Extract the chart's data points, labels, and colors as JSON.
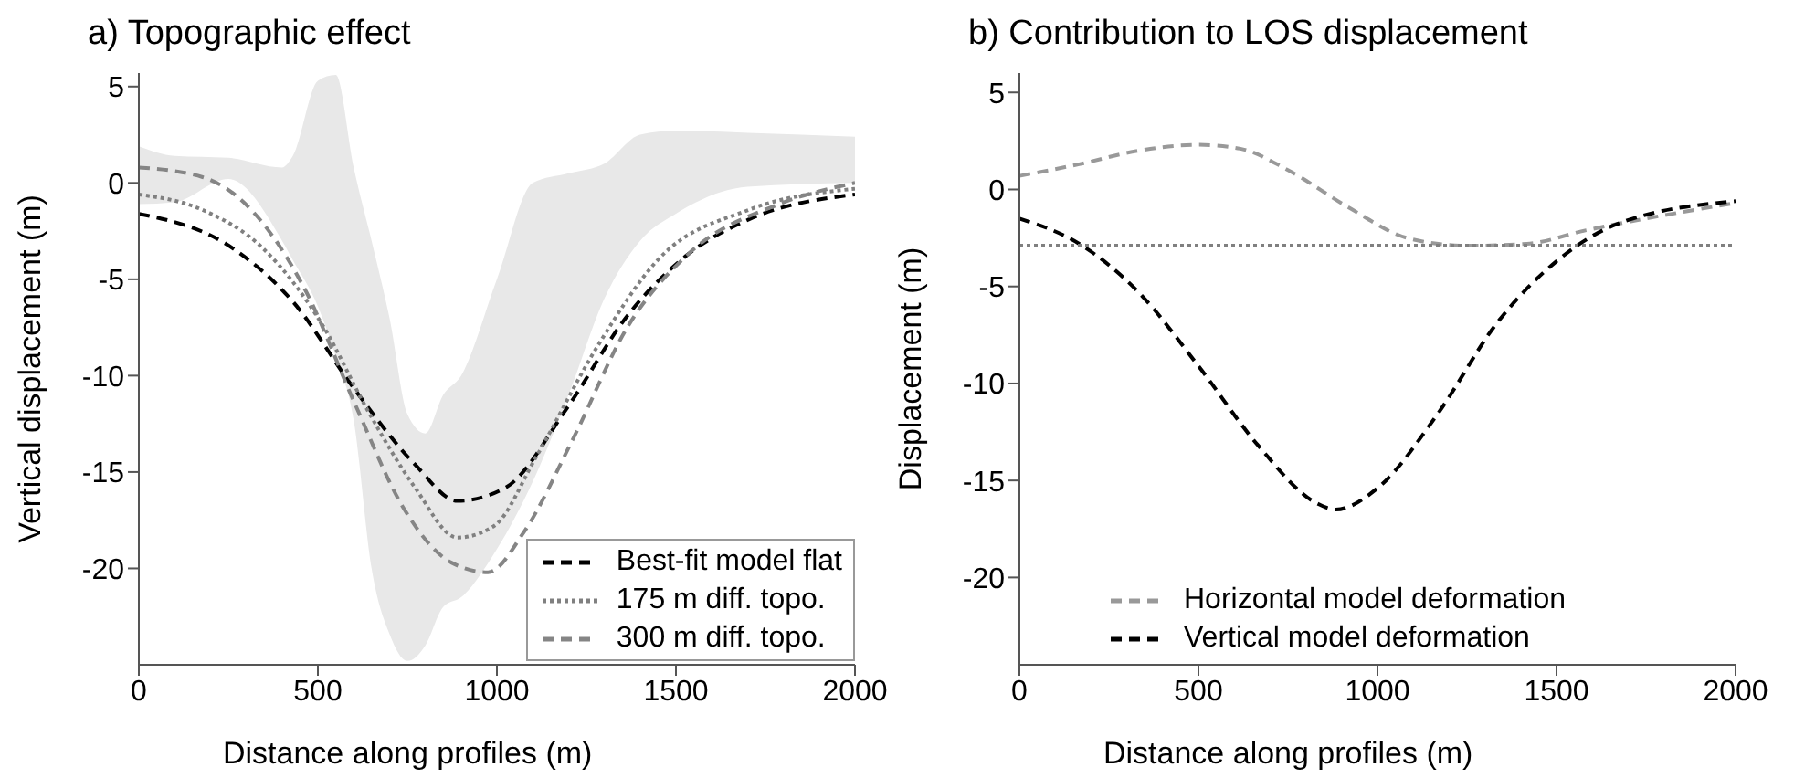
{
  "chart_data": [
    {
      "type": "line",
      "title": "a) Topographic effect",
      "xlabel": "Distance along profiles (m)",
      "ylabel": "Vertical displacement (m)",
      "xlim": [
        0,
        2000
      ],
      "xticks": [
        0,
        500,
        1000,
        1500,
        2000
      ],
      "ylim": [
        -25,
        5.7
      ],
      "yticks": [
        -20,
        -15,
        -10,
        -5,
        0,
        5
      ],
      "grid": false,
      "legend": "bottom right",
      "marker": "none",
      "series": [
        {
          "color": "#e8e8e8",
          "x": [
            0,
            100,
            250,
            400,
            430,
            500,
            550,
            600,
            650,
            700,
            750,
            800,
            850,
            900,
            1000,
            1100,
            1200,
            1300,
            1400,
            1500,
            1700,
            2000
          ],
          "lower": [
            -1.1,
            -1.0,
            0.2,
            -3,
            -4,
            -6.4,
            -9,
            -12.3,
            -20,
            -23.4,
            -24.8,
            -24,
            -22,
            -21.5,
            -19,
            -15.5,
            -11,
            -6,
            -3,
            -1.6,
            -0.2,
            0
          ],
          "values": [
            null,
            null,
            null,
            null,
            null,
            null,
            null,
            null,
            null,
            null,
            null,
            null,
            null,
            null,
            null,
            null,
            null,
            null,
            null,
            null,
            null,
            null
          ],
          "upper": [
            1.9,
            1.4,
            1.3,
            0.8,
            1.4,
            5.3,
            5.6,
            0.8,
            -3,
            -7,
            -12,
            -13,
            -11,
            -10,
            -5,
            0,
            0.5,
            1,
            2.5,
            2.7,
            2.6,
            2.4
          ]
        },
        {
          "name": "Best-fit model flat",
          "color": "#000000",
          "line_style": "dashed",
          "x": [
            0,
            263,
            432,
            602,
            771,
            890,
            1025,
            1195,
            1364,
            1534,
            1703,
            2000
          ],
          "values": [
            -1.6,
            -3.4,
            -6.2,
            -10.7,
            -14.6,
            -16.5,
            -15.8,
            -11.7,
            -6.9,
            -3.7,
            -1.9,
            -0.6
          ]
        },
        {
          "name": "175 m diff. topo.",
          "color": "#808080",
          "line_style": "dotted",
          "x": [
            0,
            178,
            347,
            517,
            636,
            771,
            890,
            992,
            1110,
            1280,
            1449,
            1703,
            2000
          ],
          "values": [
            -0.6,
            -1.4,
            -3.4,
            -7.5,
            -11.7,
            -15.8,
            -18.4,
            -17.8,
            -14.2,
            -8.5,
            -4,
            -1.4,
            -0.3
          ]
        },
        {
          "name": "300 m diff. topo.",
          "color": "#858585",
          "line_style": "dashed",
          "x": [
            0,
            178,
            314,
            466,
            602,
            737,
            873,
            975,
            1076,
            1212,
            1364,
            1534,
            1788,
            2000
          ],
          "values": [
            0.8,
            0.3,
            -1.4,
            -5.6,
            -11.4,
            -16.8,
            -19.7,
            -20.2,
            -18.1,
            -13.3,
            -7.5,
            -3.7,
            -1.1,
            0
          ]
        }
      ]
    },
    {
      "type": "line",
      "title": "b) Contribution to LOS displacement",
      "xlabel": "Distance along profiles (m)",
      "ylabel": "Displacement (m)",
      "xlim": [
        0,
        2000
      ],
      "xticks": [
        0,
        500,
        1000,
        1500,
        2000
      ],
      "ylim": [
        -24.5,
        6
      ],
      "yticks": [
        -20,
        -15,
        -10,
        -5,
        0,
        5
      ],
      "grid": false,
      "legend": "bottom",
      "marker": "none",
      "ref_lines": [
        {
          "axis": "y",
          "value": -2.9,
          "color": "#808080",
          "line_style": "dotted"
        }
      ],
      "series": [
        {
          "name": "Horizontal model deformation",
          "color": "#999999",
          "line_style": "dashed",
          "x": [
            0,
            167,
            333,
            500,
            617,
            750,
            917,
            1083,
            1250,
            1417,
            1583,
            1750,
            2000
          ],
          "values": [
            0.7,
            1.3,
            2.0,
            2.3,
            2.1,
            1.0,
            -0.9,
            -2.5,
            -2.9,
            -2.8,
            -2.1,
            -1.5,
            -0.7
          ]
        },
        {
          "name": "Vertical model deformation",
          "color": "#000000",
          "line_style": "dashed",
          "x": [
            0,
            167,
            333,
            500,
            667,
            833,
            883,
            1000,
            1167,
            1333,
            1500,
            1667,
            2000
          ],
          "values": [
            -1.5,
            -2.8,
            -5.3,
            -9.1,
            -13.2,
            -16.2,
            -16.5,
            -15.4,
            -11.6,
            -6.9,
            -3.7,
            -1.8,
            -0.6
          ]
        }
      ]
    }
  ]
}
